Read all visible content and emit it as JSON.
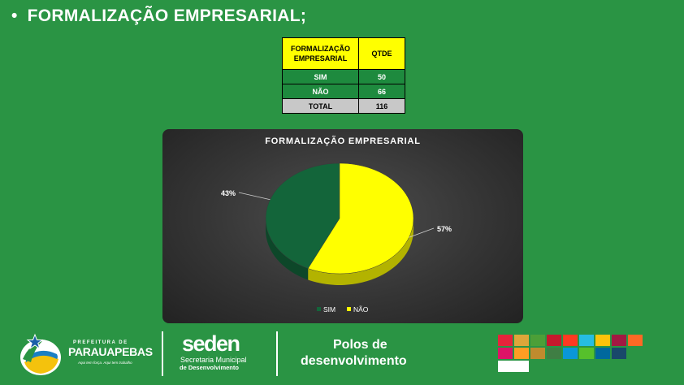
{
  "slide": {
    "bullet": "•",
    "title": "FORMALIZAÇÃO EMPRESARIAL;"
  },
  "table": {
    "headers": [
      "FORMALIZAÇÃO EMPRESARIAL",
      "QTDE"
    ],
    "rows": [
      {
        "label": "SIM",
        "value": "50"
      },
      {
        "label": "NÃO",
        "value": "66"
      }
    ],
    "total": {
      "label": "TOTAL",
      "value": "116"
    }
  },
  "chart_data": {
    "type": "pie",
    "title": "FORMALIZAÇÃO EMPRESARIAL",
    "categories": [
      "SIM",
      "NÃO"
    ],
    "values": [
      43,
      57
    ],
    "labels": [
      "43%",
      "57%"
    ],
    "colors": [
      "#13653a",
      "#ffff00"
    ],
    "legend_position": "bottom",
    "three_d": true
  },
  "footer": {
    "prefeitura_small": "PREFEITURA DE",
    "prefeitura_big": "PARAUAPEBAS",
    "prefeitura_tagline": "Aqui tem força. Aqui tem trabalho",
    "seden_big": "seden",
    "seden_sub1": "Secretaria Municipal",
    "seden_sub2": "de Desenvolvimento",
    "polos_line1": "Polos de",
    "polos_line2": "desenvolvimento",
    "ods_icons": [
      "ods-1-icon",
      "ods-2-icon",
      "ods-3-icon",
      "ods-4-icon",
      "ods-5-icon",
      "ods-6-icon",
      "ods-7-icon",
      "ods-8-icon",
      "ods-9-icon",
      "ods-10-icon",
      "ods-11-icon",
      "ods-12-icon",
      "ods-13-icon",
      "ods-14-icon",
      "ods-15-icon",
      "ods-16-icon",
      "ods-17-icon",
      "ods-logo-icon"
    ],
    "ods_colors": [
      "#e5243b",
      "#dda63a",
      "#4c9f38",
      "#c5192d",
      "#ff3a21",
      "#26bde2",
      "#fcc30b",
      "#a21942",
      "#fd6925",
      "#dd1367",
      "#fd9d24",
      "#bf8b2e",
      "#3f7e44",
      "#0a97d9",
      "#56c02b",
      "#00689d",
      "#19486a",
      "#ffffff"
    ]
  }
}
